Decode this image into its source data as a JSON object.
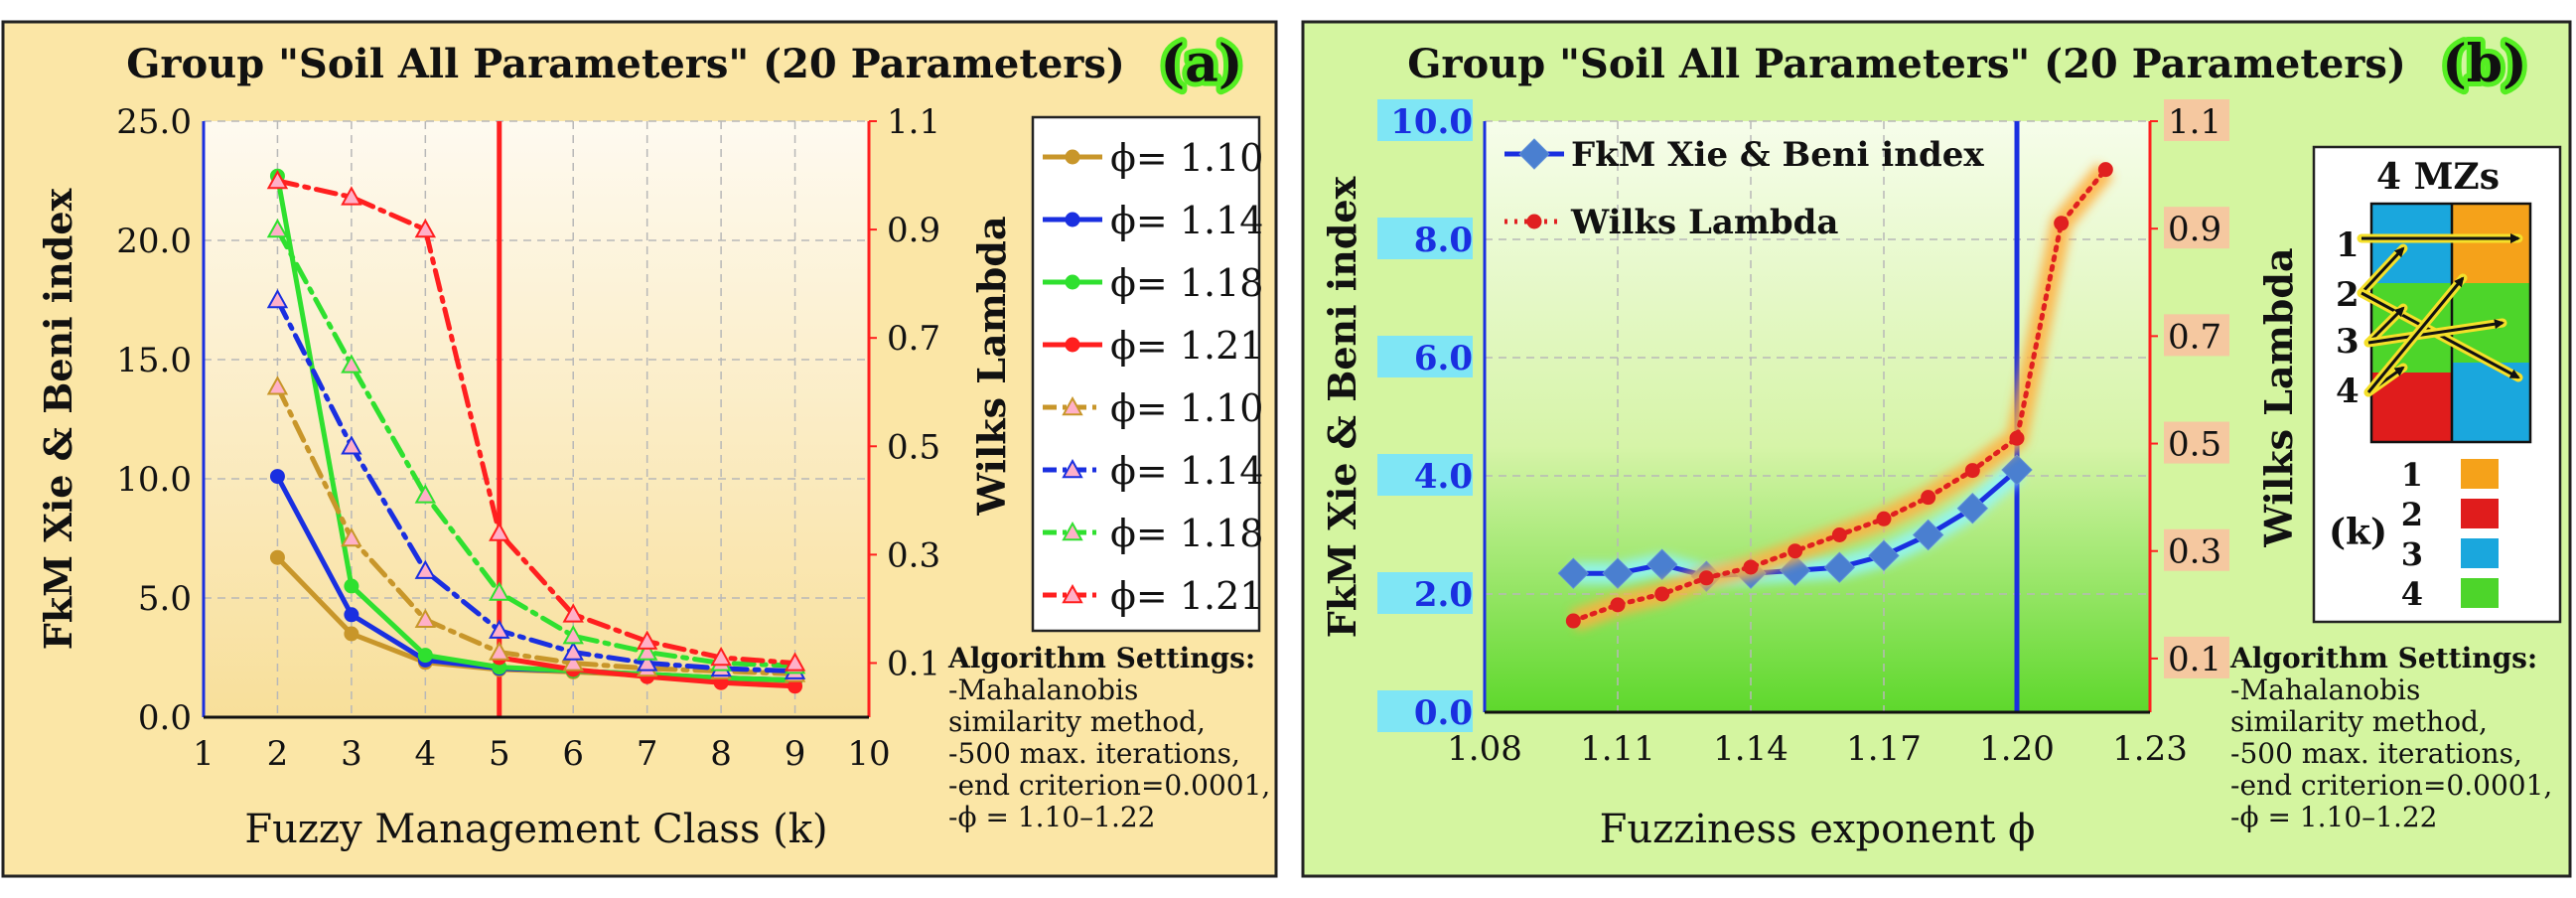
{
  "colors": {
    "panel_a_bg": "#fbe6a6",
    "panel_b_bg": "#d4f5a0",
    "gold": "#c8962a",
    "blue": "#1a2fe0",
    "green": "#2fe02f",
    "red": "#ff1f1f",
    "diamond": "#4a7fd0",
    "label_green": "#55ee22",
    "cyan_box": "#7fe6f5",
    "peach_box": "#f5c8a0"
  },
  "chart_data": [
    {
      "id": "a",
      "type": "line",
      "panel_label": "(a)",
      "title": "Group \"Soil All Parameters\" (20 Parameters)",
      "xlabel": "Fuzzy Management Class (k)",
      "ylabel": "FkM Xie & Beni index",
      "y2label": "Wilks Lambda",
      "xlim": [
        1,
        10
      ],
      "ylim": [
        0,
        25
      ],
      "y2lim": [
        0,
        1.1
      ],
      "x_ticks": [
        "1",
        "2",
        "3",
        "4",
        "5",
        "6",
        "7",
        "8",
        "9",
        "10"
      ],
      "y_ticks": [
        "0.0",
        "5.0",
        "10.0",
        "15.0",
        "20.0",
        "25.0"
      ],
      "y2_ticks": [
        "0.1",
        "0.3",
        "0.5",
        "0.7",
        "0.9",
        "1.1"
      ],
      "vline_x": 5,
      "grid": true,
      "legend_position": "right",
      "phi_symbol": "ϕ",
      "series": [
        {
          "name": "ϕ= 1.10",
          "axis": "left",
          "style": "solid",
          "color": "#c8962a",
          "marker": "circle",
          "x": [
            2,
            3,
            4,
            5,
            6,
            7,
            8,
            9
          ],
          "values": [
            6.7,
            3.5,
            2.3,
            2.0,
            1.9,
            1.75,
            1.6,
            1.5
          ]
        },
        {
          "name": "ϕ= 1.14",
          "axis": "left",
          "style": "solid",
          "color": "#1a2fe0",
          "marker": "circle",
          "x": [
            2,
            3,
            4,
            5,
            6,
            7,
            8,
            9
          ],
          "values": [
            10.1,
            4.3,
            2.4,
            2.05,
            1.95,
            1.8,
            1.65,
            1.55
          ]
        },
        {
          "name": "ϕ= 1.18",
          "axis": "left",
          "style": "solid",
          "color": "#2fe02f",
          "marker": "circle",
          "x": [
            2,
            3,
            4,
            5,
            6,
            7,
            8,
            9
          ],
          "values": [
            22.7,
            5.5,
            2.6,
            2.1,
            1.95,
            1.8,
            1.65,
            1.55
          ]
        },
        {
          "name": "ϕ= 1.21",
          "axis": "left",
          "style": "solid",
          "color": "#ff1f1f",
          "marker": "circle",
          "x": [
            5,
            6,
            7,
            8,
            9
          ],
          "values": [
            2.5,
            2.0,
            1.7,
            1.45,
            1.3
          ]
        },
        {
          "name": "ϕ= 1.10",
          "axis": "right",
          "style": "dashdot",
          "color": "#c8962a",
          "marker": "triangle",
          "x": [
            2,
            3,
            4,
            5,
            6,
            7,
            8,
            9
          ],
          "values": [
            0.61,
            0.33,
            0.18,
            0.12,
            0.1,
            0.09,
            0.085,
            0.08
          ]
        },
        {
          "name": "ϕ= 1.14",
          "axis": "right",
          "style": "dashdot",
          "color": "#1a2fe0",
          "marker": "triangle",
          "x": [
            2,
            3,
            4,
            5,
            6,
            7,
            8,
            9
          ],
          "values": [
            0.77,
            0.5,
            0.27,
            0.16,
            0.12,
            0.1,
            0.09,
            0.085
          ]
        },
        {
          "name": "ϕ= 1.18",
          "axis": "right",
          "style": "dashdot",
          "color": "#2fe02f",
          "marker": "triangle",
          "x": [
            2,
            3,
            4,
            5,
            6,
            7,
            8,
            9
          ],
          "values": [
            0.9,
            0.65,
            0.41,
            0.23,
            0.15,
            0.12,
            0.1,
            0.095
          ]
        },
        {
          "name": "ϕ= 1.21",
          "axis": "right",
          "style": "dashdot",
          "color": "#ff1f1f",
          "marker": "triangle",
          "x": [
            2,
            3,
            4,
            5,
            6,
            7,
            8,
            9
          ],
          "values": [
            0.99,
            0.96,
            0.9,
            0.34,
            0.19,
            0.14,
            0.11,
            0.1
          ]
        }
      ],
      "settings": [
        "Algorithm Settings:",
        "-Mahalanobis",
        "similarity method,",
        "-500 max. iterations,",
        "-end criterion=0.0001,",
        "-ϕ = 1.10–1.22"
      ]
    },
    {
      "id": "b",
      "type": "line",
      "panel_label": "(b)",
      "title": "Group \"Soil All Parameters\" (20 Parameters)",
      "xlabel": "Fuzziness exponent ϕ",
      "ylabel": "FkM Xie & Beni index",
      "y2label": "Wilks Lambda",
      "xlim": [
        1.08,
        1.23
      ],
      "ylim": [
        0,
        10
      ],
      "y2lim": [
        0,
        1.1
      ],
      "x_ticks": [
        "1.08",
        "1.11",
        "1.14",
        "1.17",
        "1.20",
        "1.23"
      ],
      "y_ticks": [
        "0.0",
        "2.0",
        "4.0",
        "6.0",
        "8.0",
        "10.0"
      ],
      "y2_ticks": [
        "0.1",
        "0.3",
        "0.5",
        "0.7",
        "0.9",
        "1.1"
      ],
      "vline_x": 1.2,
      "grid": true,
      "legend_position": "top-left",
      "series": [
        {
          "name": "FkM Xie & Beni index",
          "axis": "left",
          "style": "solid",
          "color": "#1a2fe0",
          "marker": "diamond",
          "x": [
            1.1,
            1.11,
            1.12,
            1.13,
            1.14,
            1.15,
            1.16,
            1.17,
            1.18,
            1.19,
            1.2
          ],
          "values": [
            2.35,
            2.35,
            2.5,
            2.3,
            2.35,
            2.4,
            2.45,
            2.65,
            3.0,
            3.45,
            4.1
          ]
        },
        {
          "name": "Wilks Lambda",
          "axis": "right",
          "style": "dotted",
          "color": "#e02020",
          "marker": "circle",
          "x": [
            1.1,
            1.11,
            1.12,
            1.13,
            1.14,
            1.15,
            1.16,
            1.17,
            1.18,
            1.19,
            1.2,
            1.21,
            1.22
          ],
          "values": [
            0.17,
            0.2,
            0.22,
            0.25,
            0.27,
            0.3,
            0.33,
            0.36,
            0.4,
            0.45,
            0.51,
            0.91,
            1.01
          ]
        }
      ],
      "inset": {
        "title": "4 MZs",
        "row_labels": [
          "1",
          "2",
          "3",
          "4"
        ],
        "k_label": "(k)",
        "legend": [
          {
            "label": "1",
            "color": "#f5a21a"
          },
          {
            "label": "2",
            "color": "#e01c1c"
          },
          {
            "label": "3",
            "color": "#1aa7dd"
          },
          {
            "label": "4",
            "color": "#4dd52a"
          }
        ]
      },
      "settings": [
        "Algorithm Settings:",
        "-Mahalanobis",
        "similarity method,",
        "-500 max. iterations,",
        "-end criterion=0.0001,",
        "-ϕ = 1.10–1.22"
      ]
    }
  ]
}
